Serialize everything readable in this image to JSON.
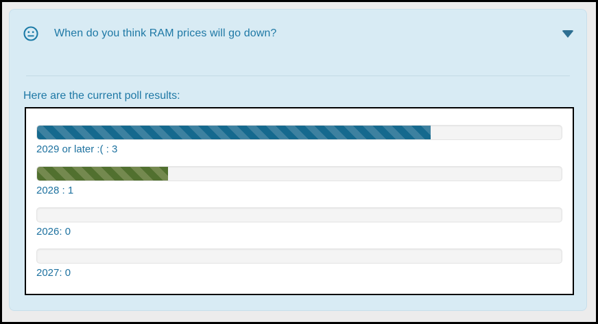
{
  "page": {
    "background": "#ececec",
    "frame_border_color": "#000000"
  },
  "card": {
    "background": "#d8ebf4",
    "accent_text_color": "#1e78a5",
    "question": "When do you think RAM prices will go down?",
    "results_label": "Here are the current poll results:",
    "emoji_icon": "neutral-face",
    "emoji_color": "#1b7aa6",
    "collapse_icon": "triangle-down",
    "collapse_icon_color": "#2e6f92"
  },
  "poll": {
    "label_color": "#1d719f",
    "track_color": "#f4f4f4",
    "options": [
      {
        "label": "2029 or later :( : 3",
        "votes": 3,
        "percent": 75,
        "stripe_dark": "#15698e",
        "stripe_light": "#3d81a0"
      },
      {
        "label": "2028 : 1",
        "votes": 1,
        "percent": 25,
        "stripe_dark": "#51702f",
        "stripe_light": "#74894f"
      },
      {
        "label": "2026: 0",
        "votes": 0,
        "percent": 0
      },
      {
        "label": "2027: 0",
        "votes": 0,
        "percent": 0
      }
    ]
  }
}
